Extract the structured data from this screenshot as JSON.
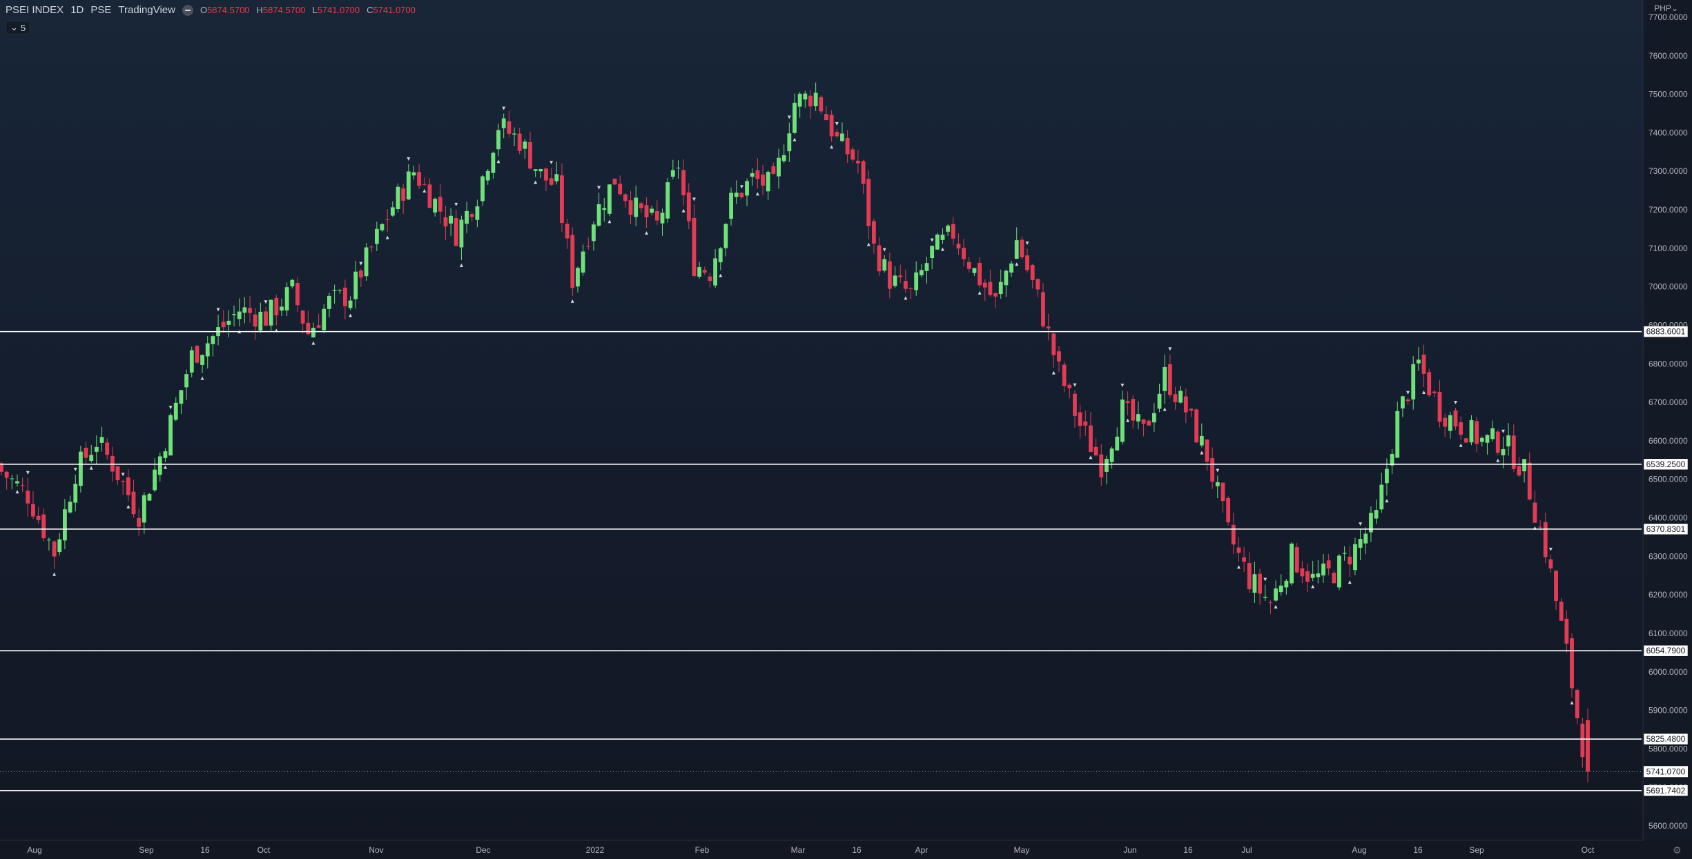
{
  "header": {
    "symbol": "PSEI INDEX",
    "interval": "1D",
    "exchange": "PSE",
    "source": "TradingView",
    "ohlc": [
      {
        "key": "O",
        "value": "5874.5700"
      },
      {
        "key": "H",
        "value": "5874.5700"
      },
      {
        "key": "L",
        "value": "5741.0700"
      },
      {
        "key": "C",
        "value": "5741.0700"
      }
    ],
    "indicator_count": "5",
    "currency": "PHP"
  },
  "colors": {
    "up": "#6fe07a",
    "down": "#e23c55",
    "line": "#ffffff",
    "axis_text": "#b2b5be",
    "background": "#16202f"
  },
  "chart_data": {
    "type": "candlestick",
    "title": "",
    "xlabel": "",
    "ylabel": "",
    "ylim": [
      5560,
      7740
    ],
    "y_ticks": [
      "5600.0000",
      "5700.0000",
      "5800.0000",
      "5900.0000",
      "6000.0000",
      "6100.0000",
      "6200.0000",
      "6300.0000",
      "6400.0000",
      "6500.0000",
      "6600.0000",
      "6700.0000",
      "6800.0000",
      "6900.0000",
      "7000.0000",
      "7100.0000",
      "7200.0000",
      "7300.0000",
      "7400.0000",
      "7500.0000",
      "7600.0000",
      "7700.0000"
    ],
    "x_ticks": [
      "Aug",
      "Sep",
      "16",
      "Oct",
      "Nov",
      "Dec",
      "2022",
      "Feb",
      "Mar",
      "16",
      "Apr",
      "May",
      "Jun",
      "16",
      "Jul",
      "Aug",
      "16",
      "Sep",
      "Oct"
    ],
    "levels": [
      {
        "value": 6883.6001,
        "label": "6883.6001"
      },
      {
        "value": 6539.25,
        "label": "6539.2500"
      },
      {
        "value": 6370.8301,
        "label": "6370.8301"
      },
      {
        "value": 6054.79,
        "label": "6054.7900"
      },
      {
        "value": 5825.48,
        "label": "5825.4800"
      },
      {
        "value": 5691.7402,
        "label": "5691.7402"
      }
    ],
    "last_price": {
      "value": 5741.07,
      "label": "5741.0700"
    },
    "close_path": [
      [
        0,
        6520
      ],
      [
        5,
        6460
      ],
      [
        10,
        6310
      ],
      [
        14,
        6520
      ],
      [
        18,
        6600
      ],
      [
        21,
        6540
      ],
      [
        26,
        6410
      ],
      [
        30,
        6560
      ],
      [
        36,
        6820
      ],
      [
        40,
        6870
      ],
      [
        45,
        6940
      ],
      [
        50,
        6920
      ],
      [
        55,
        6990
      ],
      [
        58,
        6880
      ],
      [
        62,
        6960
      ],
      [
        66,
        6980
      ],
      [
        70,
        7100
      ],
      [
        74,
        7210
      ],
      [
        78,
        7300
      ],
      [
        82,
        7220
      ],
      [
        86,
        7140
      ],
      [
        90,
        7240
      ],
      [
        94,
        7420
      ],
      [
        98,
        7380
      ],
      [
        102,
        7290
      ],
      [
        105,
        7260
      ],
      [
        108,
        7020
      ],
      [
        112,
        7180
      ],
      [
        116,
        7280
      ],
      [
        120,
        7200
      ],
      [
        124,
        7160
      ],
      [
        128,
        7320
      ],
      [
        131,
        7060
      ],
      [
        134,
        7040
      ],
      [
        138,
        7220
      ],
      [
        142,
        7280
      ],
      [
        146,
        7260
      ],
      [
        150,
        7480
      ],
      [
        154,
        7500
      ],
      [
        158,
        7380
      ],
      [
        162,
        7320
      ],
      [
        165,
        7100
      ],
      [
        168,
        7020
      ],
      [
        172,
        6980
      ],
      [
        176,
        7090
      ],
      [
        180,
        7140
      ],
      [
        184,
        7040
      ],
      [
        188,
        6960
      ],
      [
        192,
        7120
      ],
      [
        196,
        6970
      ],
      [
        200,
        6780
      ],
      [
        204,
        6640
      ],
      [
        208,
        6540
      ],
      [
        212,
        6680
      ],
      [
        216,
        6620
      ],
      [
        220,
        6770
      ],
      [
        224,
        6680
      ],
      [
        228,
        6560
      ],
      [
        232,
        6360
      ],
      [
        236,
        6240
      ],
      [
        240,
        6180
      ],
      [
        244,
        6300
      ],
      [
        248,
        6240
      ],
      [
        252,
        6260
      ],
      [
        256,
        6320
      ],
      [
        260,
        6400
      ],
      [
        264,
        6660
      ],
      [
        268,
        6800
      ],
      [
        272,
        6680
      ],
      [
        276,
        6640
      ],
      [
        280,
        6600
      ],
      [
        284,
        6600
      ],
      [
        288,
        6520
      ],
      [
        292,
        6320
      ],
      [
        296,
        6050
      ],
      [
        298,
        5885
      ],
      [
        300,
        5741
      ]
    ],
    "shown_bars": 300
  }
}
